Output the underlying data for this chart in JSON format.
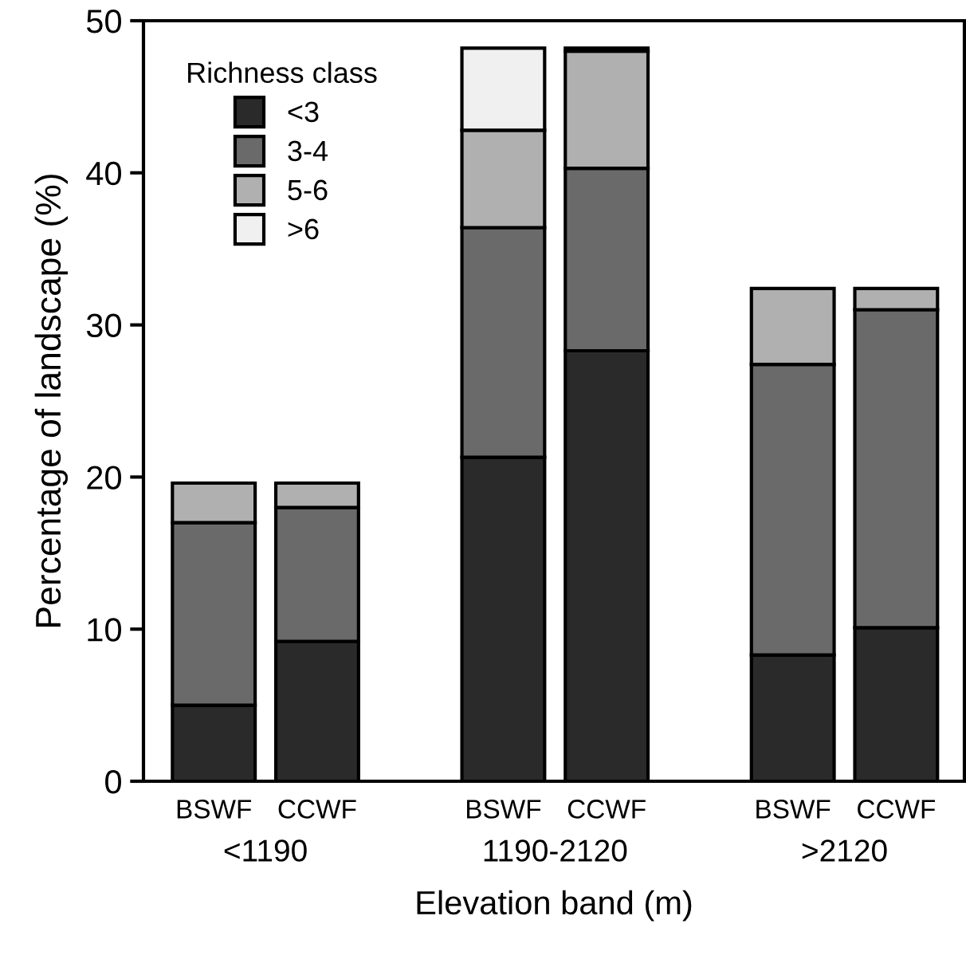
{
  "chart_data": {
    "type": "bar",
    "stacked": true,
    "categories": [
      "BSWF",
      "CCWF",
      "BSWF",
      "CCWF",
      "BSWF",
      "CCWF"
    ],
    "annotations": [
      "<1190",
      "1190-2120",
      ">2120"
    ],
    "xlabel": "Elevation band (m)",
    "ylabel": "Percentage of landscape (%)",
    "legend_title": "Richness class",
    "legend": "top left",
    "ylim": [
      0,
      50
    ],
    "yticks": [
      0,
      10,
      20,
      30,
      40,
      50
    ],
    "grid": false,
    "series": [
      {
        "name": "<3",
        "color": "#2a2a2a",
        "values": [
          5.0,
          9.2,
          21.3,
          28.3,
          8.3,
          10.1
        ]
      },
      {
        "name": "3-4",
        "color": "#6a6a6a",
        "values": [
          12.0,
          8.8,
          15.1,
          12.0,
          19.1,
          20.9
        ]
      },
      {
        "name": "5-6",
        "color": "#b0b0b0",
        "values": [
          2.6,
          1.6,
          6.4,
          7.7,
          5.0,
          1.4
        ]
      },
      {
        "name": ">6",
        "color": "#f0f0f0",
        "values": [
          null,
          null,
          5.4,
          0.2,
          null,
          null
        ]
      }
    ]
  }
}
